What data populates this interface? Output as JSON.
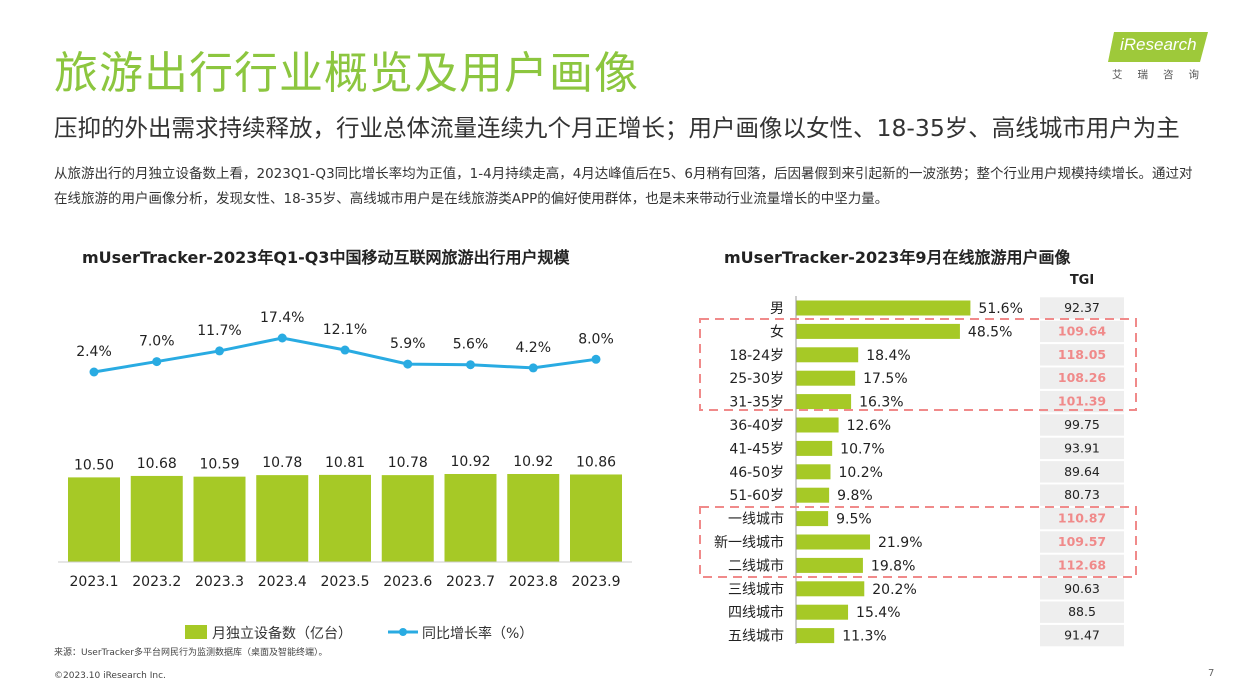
{
  "title": "旅游出行行业概览及用户画像",
  "subtitle": "压抑的外出需求持续释放，行业总体流量连续九个月正增长；用户画像以女性、18-35岁、高线城市用户为主",
  "summary": "从旅游出行的月独立设备数上看，2023Q1-Q3同比增长率均为正值，1-4月持续走高，4月达峰值后在5、6月稍有回落，后因暑假到来引起新的一波涨势；整个行业用户规模持续增长。通过对在线旅游的用户画像分析，发现女性、18-35岁、高线城市用户是在线旅游类APP的偏好使用群体，也是未来带动行业流量增长的中坚力量。",
  "logo": {
    "brand": "iResearch",
    "sub": "艾瑞咨询"
  },
  "source": "来源：UserTracker多平台网民行为监测数据库（桌面及智能终端）。",
  "copyright": "©2023.10 iResearch Inc.",
  "page_number": "7",
  "colors": {
    "accent_green": "#8cc63f",
    "bar_green": "#a6c926",
    "line_blue": "#29abe2",
    "highlight_red": "#f08a8a",
    "tgi_bg": "#eeeeee"
  },
  "chart_data": [
    {
      "type": "bar",
      "title": "mUserTracker-2023年Q1-Q3中国移动互联网旅游出行用户规模",
      "categories": [
        "2023.1",
        "2023.2",
        "2023.3",
        "2023.4",
        "2023.5",
        "2023.6",
        "2023.7",
        "2023.8",
        "2023.9"
      ],
      "series": [
        {
          "name": "月独立设备数（亿台）",
          "type": "bar",
          "values": [
            10.5,
            10.68,
            10.59,
            10.78,
            10.81,
            10.78,
            10.92,
            10.92,
            10.86
          ],
          "labels": [
            "10.50",
            "10.68",
            "10.59",
            "10.78",
            "10.81",
            "10.78",
            "10.92",
            "10.92",
            "10.86"
          ]
        },
        {
          "name": "同比增长率（%）",
          "type": "line",
          "values": [
            2.4,
            7.0,
            11.7,
            17.4,
            12.1,
            5.9,
            5.6,
            4.2,
            8.0
          ],
          "labels": [
            "2.4%",
            "7.0%",
            "11.7%",
            "17.4%",
            "12.1%",
            "5.9%",
            "5.6%",
            "4.2%",
            "8.0%"
          ]
        }
      ],
      "legend": "bottom"
    },
    {
      "type": "bar",
      "orientation": "horizontal",
      "title": "mUserTracker-2023年9月在线旅游用户画像",
      "tgi_header": "TGI",
      "categories": [
        "男",
        "女",
        "18-24岁",
        "25-30岁",
        "31-35岁",
        "36-40岁",
        "41-45岁",
        "46-50岁",
        "51-60岁",
        "一线城市",
        "新一线城市",
        "二线城市",
        "三线城市",
        "四线城市",
        "五线城市"
      ],
      "values": [
        51.6,
        48.5,
        18.4,
        17.5,
        16.3,
        12.6,
        10.7,
        10.2,
        9.8,
        9.5,
        21.9,
        19.8,
        20.2,
        15.4,
        11.3
      ],
      "labels": [
        "51.6%",
        "48.5%",
        "18.4%",
        "17.5%",
        "16.3%",
        "12.6%",
        "10.7%",
        "10.2%",
        "9.8%",
        "9.5%",
        "21.9%",
        "19.8%",
        "20.2%",
        "15.4%",
        "11.3%"
      ],
      "tgi": [
        "92.37",
        "109.64",
        "118.05",
        "108.26",
        "101.39",
        "99.75",
        "93.91",
        "89.64",
        "80.73",
        "110.87",
        "109.57",
        "112.68",
        "90.63",
        "88.5",
        "91.47"
      ],
      "highlighted": [
        false,
        true,
        true,
        true,
        true,
        false,
        false,
        false,
        false,
        true,
        true,
        true,
        false,
        false,
        false
      ]
    }
  ]
}
